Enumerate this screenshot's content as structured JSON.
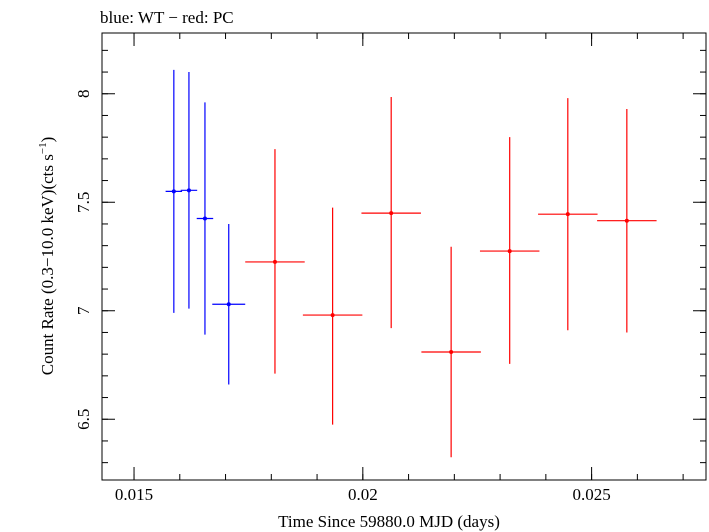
{
  "chart_data": {
    "type": "scatter",
    "title": "blue: WT − red: PC",
    "xlabel": "Time Since 59880.0 MJD (days)",
    "ylabel_parts": [
      "Count Rate (0.3−10.0 keV)(cts s",
      "−1",
      ")"
    ],
    "xlim": [
      0.0143,
      0.0275
    ],
    "ylim": [
      6.22,
      8.28
    ],
    "x_ticks_major": [
      0.015,
      0.02,
      0.025
    ],
    "x_tick_labels": [
      "0.015",
      "0.02",
      "0.025"
    ],
    "y_ticks_major": [
      6.5,
      7,
      7.5,
      8
    ],
    "y_tick_labels": [
      "6.5",
      "7",
      "7.5",
      "8"
    ],
    "x_minor_step": 0.001,
    "y_minor_step": 0.1,
    "grid": false,
    "series": [
      {
        "name": "WT",
        "color": "#0000ff",
        "points": [
          {
            "x": 0.01587,
            "xerr": 0.00018,
            "y": 7.55,
            "yerr_low": 0.56,
            "yerr_high": 0.56
          },
          {
            "x": 0.0162,
            "xerr": 0.00018,
            "y": 7.555,
            "yerr_low": 0.545,
            "yerr_high": 0.545
          },
          {
            "x": 0.01655,
            "xerr": 0.00018,
            "y": 7.425,
            "yerr_low": 0.535,
            "yerr_high": 0.535
          },
          {
            "x": 0.01707,
            "xerr": 0.00036,
            "y": 7.03,
            "yerr_low": 0.37,
            "yerr_high": 0.37
          }
        ]
      },
      {
        "name": "PC",
        "color": "#ff0000",
        "points": [
          {
            "x": 0.01808,
            "xerr": 0.00065,
            "y": 7.225,
            "yerr_low": 0.515,
            "yerr_high": 0.52
          },
          {
            "x": 0.01934,
            "xerr": 0.00065,
            "y": 6.98,
            "yerr_low": 0.505,
            "yerr_high": 0.495
          },
          {
            "x": 0.02062,
            "xerr": 0.00065,
            "y": 7.45,
            "yerr_low": 0.53,
            "yerr_high": 0.535
          },
          {
            "x": 0.02193,
            "xerr": 0.00065,
            "y": 6.81,
            "yerr_low": 0.485,
            "yerr_high": 0.485
          },
          {
            "x": 0.02321,
            "xerr": 0.00065,
            "y": 7.275,
            "yerr_low": 0.52,
            "yerr_high": 0.525
          },
          {
            "x": 0.02448,
            "xerr": 0.00065,
            "y": 7.445,
            "yerr_low": 0.535,
            "yerr_high": 0.535
          },
          {
            "x": 0.02577,
            "xerr": 0.00065,
            "y": 7.415,
            "yerr_low": 0.515,
            "yerr_high": 0.515
          }
        ]
      }
    ]
  }
}
